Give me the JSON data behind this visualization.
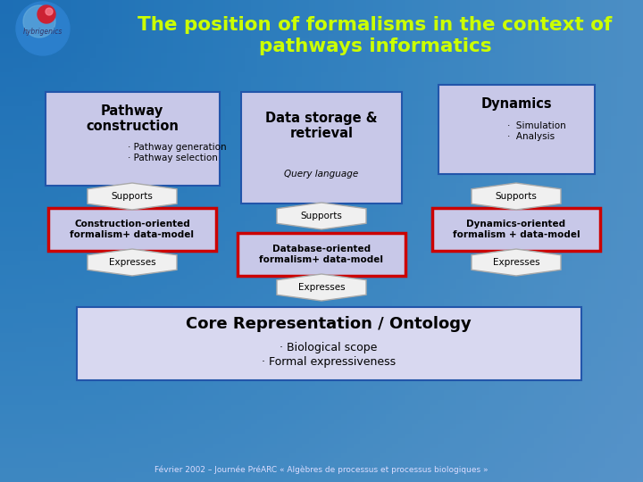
{
  "bg_color": "#1B6DB5",
  "bg_gradient_top": "#AACCEE",
  "title": "The position of formalisms in the context of\npathways informatics",
  "title_color": "#CCFF00",
  "title_fontsize": 15.5,
  "box_fill": "#C8C8E8",
  "box_fill_light": "#D8D8F0",
  "box_edge_blue": "#2255AA",
  "box_edge_red": "#CC0000",
  "arrow_fill": "#F0F0F0",
  "arrow_edge": "#AAAAAA",
  "footer": "Février 2002 – Journée PréARC « Algèbres de processus et processus biologiques »",
  "pathway_title": "Pathway\nconstruction",
  "pathway_bullets": "· Pathway generation\n· Pathway selection",
  "dynamics_title": "Dynamics",
  "dynamics_bullets": "·  Simulation\n·  Analysis",
  "datastorage_title": "Data storage &\nretrieval",
  "datastorage_sub": "Query language",
  "construction_formalism": "Construction-oriented\nformalism+ data-model",
  "dynamics_formalism": "Dynamics-oriented\nformalism + data-model",
  "database_formalism": "Database-oriented\nformalism+ data-model",
  "core_title": "Core Representation / Ontology",
  "core_bullet1": "· Biological scope",
  "core_bullet2": "· Formal expressiveness",
  "supports_text": "Supports",
  "expresses_text": "Expresses"
}
